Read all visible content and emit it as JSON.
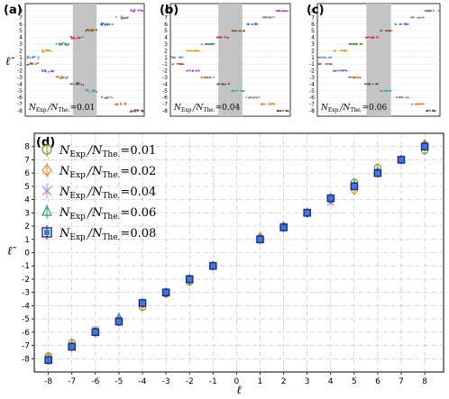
{
  "chart_data": [
    {
      "panel": "a",
      "type": "scatter",
      "ylabel": "ℓ̃",
      "yticks": [
        "8",
        "7",
        "6",
        "5",
        "4",
        "3",
        "2",
        "1",
        "-1",
        "-2",
        "-3",
        "-4",
        "-5",
        "-6",
        "-7",
        "-8"
      ],
      "annotation": {
        "prefix": "N",
        "sub1": "Exp.",
        "mid": "/N",
        "sub2": "The.",
        "value": "=0.01"
      },
      "shaded_region": [
        0.4,
        0.6
      ],
      "levels": [
        -8,
        -7,
        -6,
        -5,
        -4,
        -3,
        -2,
        -1,
        1,
        2,
        3,
        4,
        5,
        6,
        7,
        8
      ],
      "scatter": 0.32
    },
    {
      "panel": "b",
      "type": "scatter",
      "yticks": [
        "8",
        "7",
        "6",
        "5",
        "4",
        "3",
        "2",
        "1",
        "-1",
        "-2",
        "-3",
        "-4",
        "-5",
        "-6",
        "-7",
        "-8"
      ],
      "annotation": {
        "prefix": "N",
        "sub1": "Exp.",
        "mid": "/N",
        "sub2": "The.",
        "value": "=0.04"
      },
      "shaded_region": [
        0.4,
        0.6
      ],
      "levels": [
        -8,
        -7,
        -6,
        -5,
        -4,
        -3,
        -2,
        -1,
        1,
        2,
        3,
        4,
        5,
        6,
        7,
        8
      ],
      "scatter": 0.12
    },
    {
      "panel": "c",
      "type": "scatter",
      "yticks": [
        "8",
        "7",
        "6",
        "5",
        "4",
        "3",
        "2",
        "1",
        "-1",
        "-2",
        "-3",
        "-4",
        "-5",
        "-6",
        "-7",
        "-8"
      ],
      "annotation": {
        "prefix": "N",
        "sub1": "Exp.",
        "mid": "/N",
        "sub2": "The.",
        "value": "=0.06"
      },
      "shaded_region": [
        0.4,
        0.6
      ],
      "levels": [
        -8,
        -7,
        -6,
        -5,
        -4,
        -3,
        -2,
        -1,
        1,
        2,
        3,
        4,
        5,
        6,
        7,
        8
      ],
      "scatter": 0.1
    },
    {
      "panel": "d",
      "type": "scatter",
      "xlabel": "ℓ",
      "ylabel": "ℓ̃",
      "xlim": [
        -8.6,
        8.8
      ],
      "ylim": [
        -9,
        9
      ],
      "xticks": [
        -8,
        -7,
        -6,
        -5,
        -4,
        -3,
        -2,
        -1,
        0,
        1,
        2,
        3,
        4,
        5,
        6,
        7,
        8
      ],
      "yticks": [
        -8,
        -7,
        -6,
        -5,
        -4,
        -3,
        -2,
        -1,
        0,
        1,
        2,
        3,
        4,
        5,
        6,
        7,
        8
      ],
      "grid": true,
      "legend_position": "top-left",
      "x": [
        -8,
        -7,
        -6,
        -5,
        -4,
        -3,
        -2,
        -1,
        1,
        2,
        3,
        4,
        5,
        6,
        7,
        8
      ],
      "series": [
        {
          "name_prefix": "N",
          "sub1": "Exp.",
          "mid": "/N",
          "sub2": "The.",
          "value": "=0.01",
          "color": "#6a9a1f",
          "marker": "circle",
          "values": [
            -7.8,
            -6.8,
            -5.9,
            -5.1,
            -4.1,
            -3.1,
            -2.2,
            -1.0,
            1.1,
            1.9,
            3.0,
            4.0,
            5.3,
            6.4,
            7.0,
            7.7
          ]
        },
        {
          "name_prefix": "N",
          "sub1": "Exp.",
          "mid": "/N",
          "sub2": "The.",
          "value": "=0.02",
          "color": "#ee8a2e",
          "marker": "diamond",
          "values": [
            -7.9,
            -7.0,
            -6.0,
            -5.2,
            -3.9,
            -3.0,
            -2.1,
            -1.0,
            1.2,
            2.0,
            3.0,
            4.1,
            4.7,
            6.1,
            7.0,
            8.2
          ]
        },
        {
          "name_prefix": "N",
          "sub1": "Exp.",
          "mid": "/N",
          "sub2": "The.",
          "value": "=0.04",
          "color": "#b48ae6",
          "marker": "x",
          "values": [
            -8.0,
            -7.0,
            -5.8,
            -5.1,
            -3.8,
            -3.0,
            -2.0,
            -1.0,
            1.0,
            2.0,
            3.1,
            3.8,
            5.0,
            6.0,
            7.0,
            8.0
          ]
        },
        {
          "name_prefix": "N",
          "sub1": "Exp.",
          "mid": "/N",
          "sub2": "The.",
          "value": "=0.06",
          "color": "#2a9d8f",
          "marker": "triangle",
          "values": [
            -8.1,
            -7.1,
            -6.0,
            -4.9,
            -3.8,
            -3.0,
            -2.0,
            -1.0,
            1.0,
            2.0,
            3.0,
            4.1,
            5.1,
            6.1,
            7.0,
            8.1
          ]
        },
        {
          "name_prefix": "N",
          "sub1": "Exp.",
          "mid": "/N",
          "sub2": "The.",
          "value": "=0.08",
          "color": "#1f2a8c",
          "marker": "square",
          "values": [
            -8.1,
            -7.1,
            -6.0,
            -5.2,
            -3.8,
            -3.0,
            -2.0,
            -1.0,
            1.0,
            1.9,
            3.0,
            4.1,
            5.0,
            6.0,
            7.0,
            8.0
          ]
        }
      ]
    }
  ]
}
